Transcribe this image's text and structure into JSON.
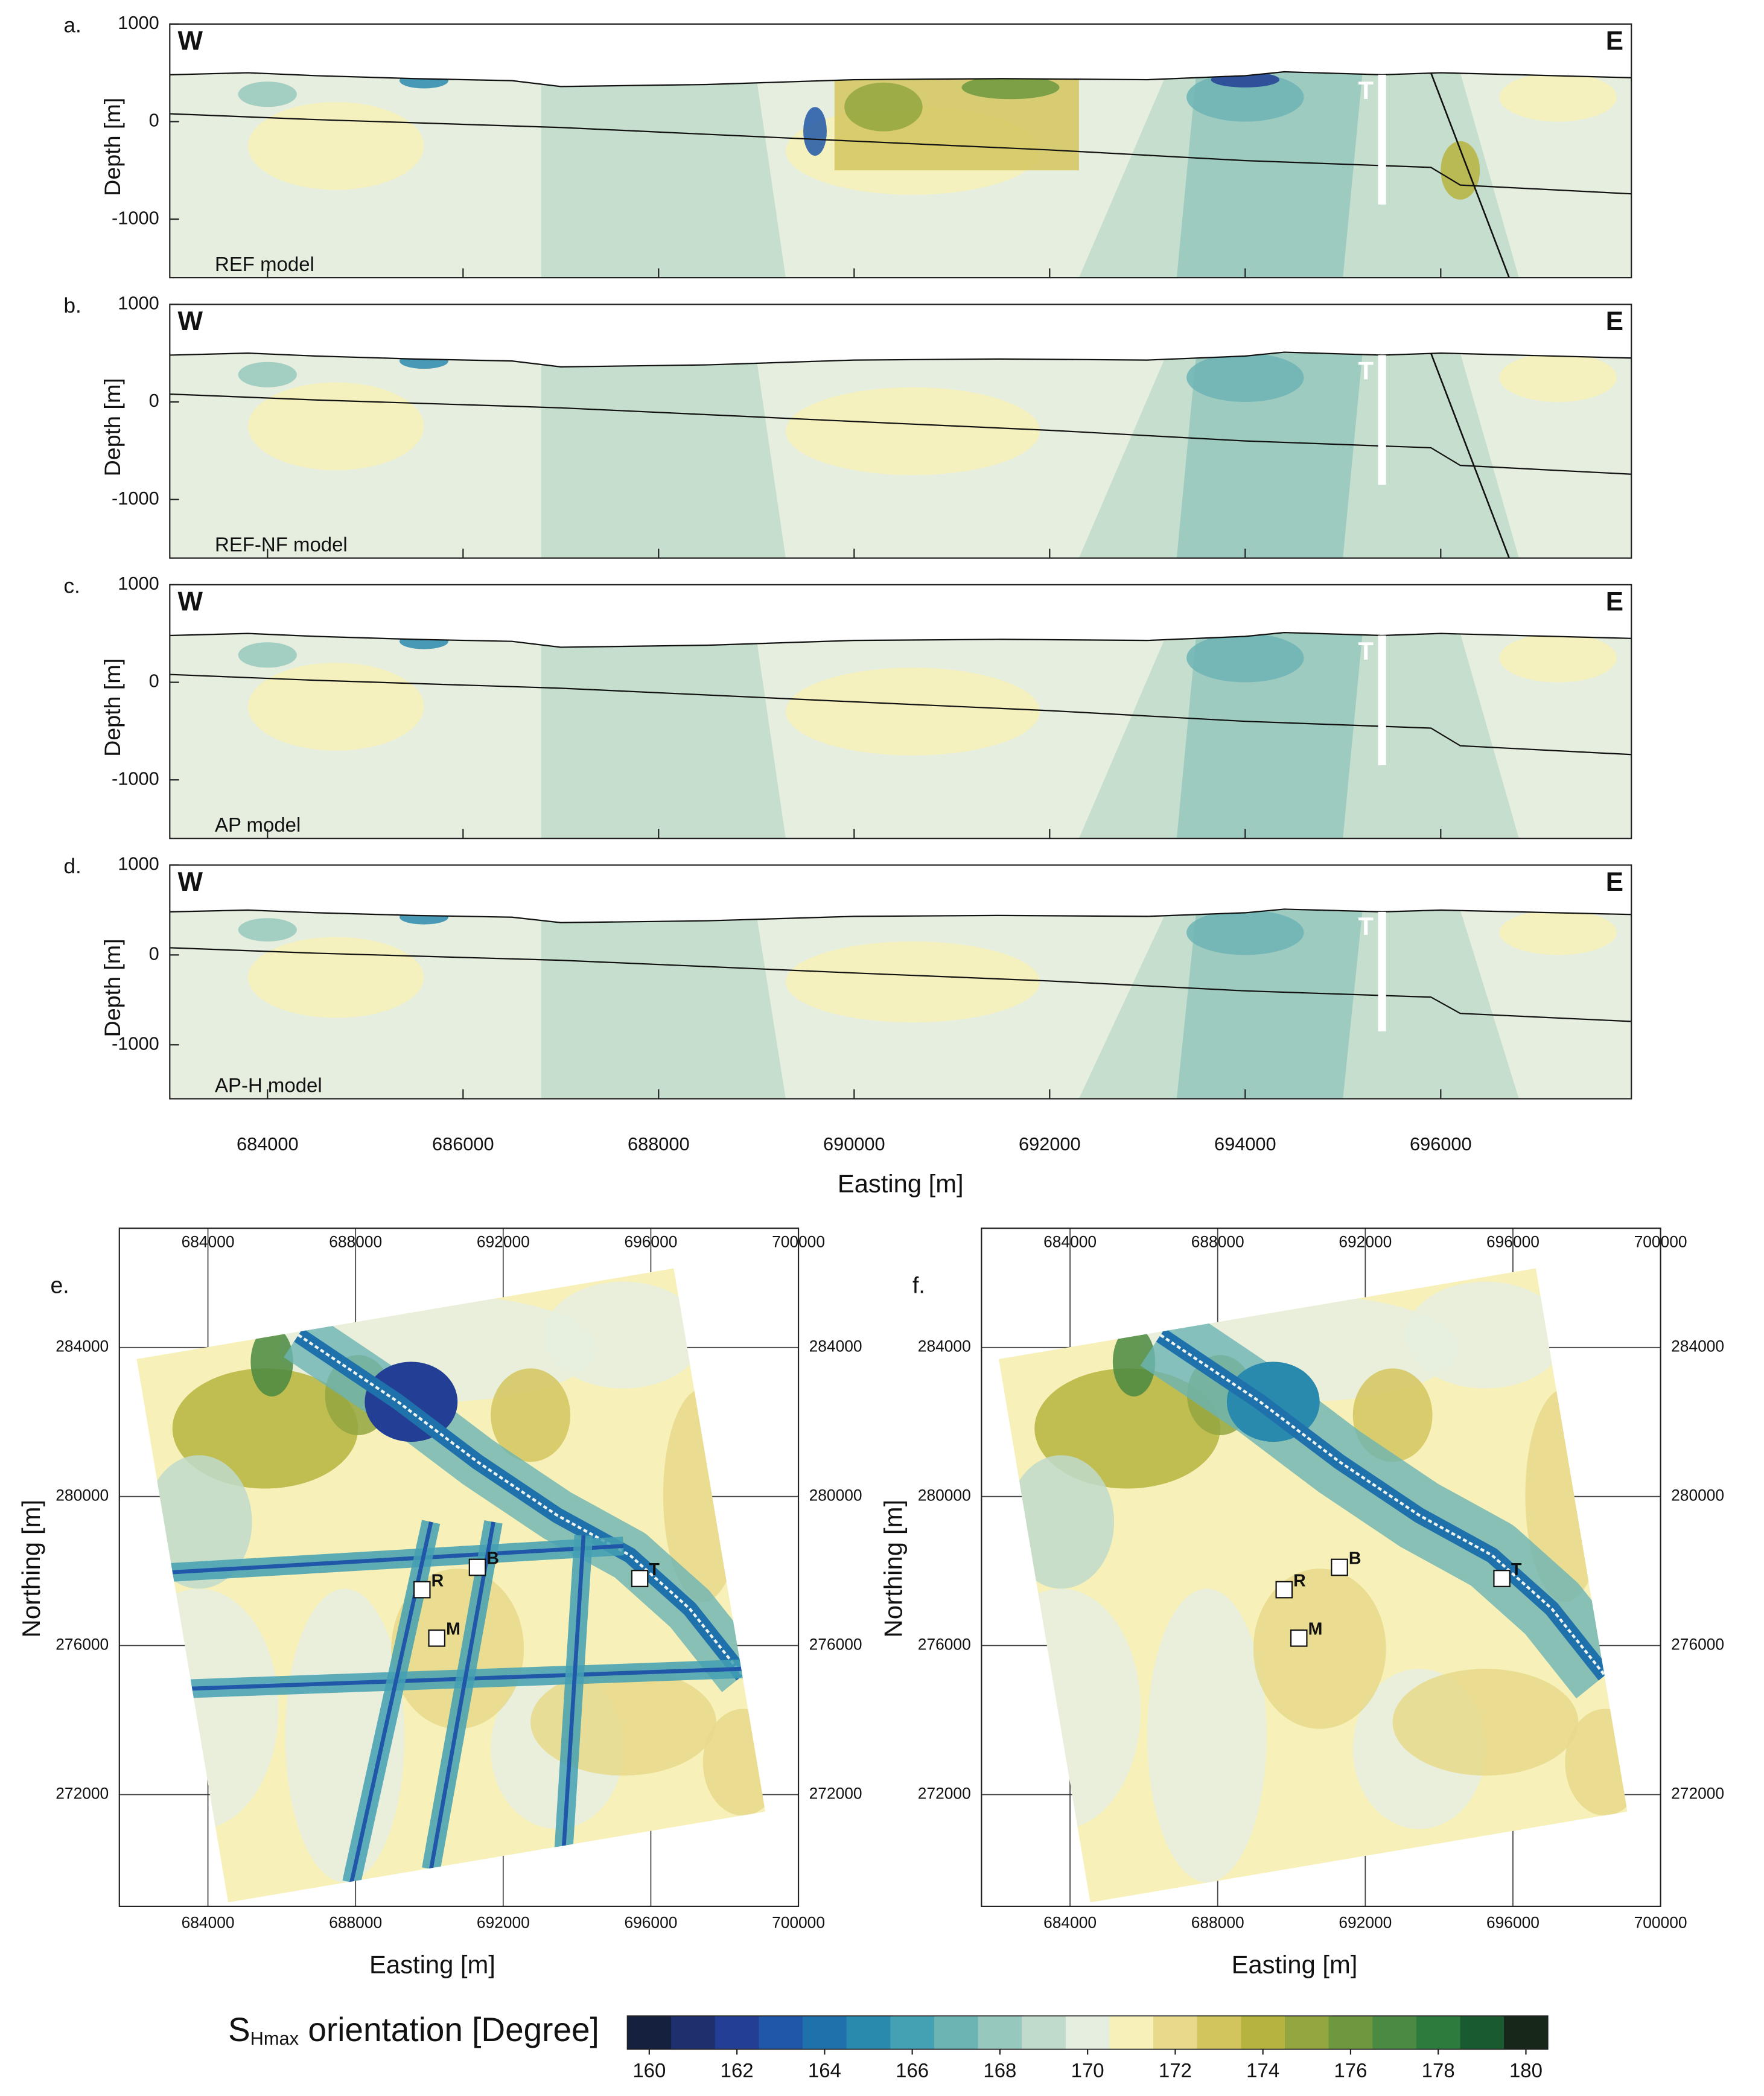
{
  "sections": {
    "ylabel": "Depth [m]",
    "xlabel": "Easting [m]",
    "xlim": [
      683000,
      697950
    ],
    "ylim": [
      -1600,
      1000
    ],
    "yticks": [
      -1000,
      0,
      1000
    ],
    "xticks": [
      684000,
      686000,
      688000,
      690000,
      692000,
      694000,
      696000
    ],
    "panels": [
      {
        "label": "a.",
        "name": "REF model",
        "west": "W",
        "east": "E",
        "well": "T",
        "fault": true
      },
      {
        "label": "b.",
        "name": "REF-NF model",
        "west": "W",
        "east": "E",
        "well": "T",
        "fault": true
      },
      {
        "label": "c.",
        "name": "AP model",
        "west": "W",
        "east": "E",
        "well": "T",
        "fault": false
      },
      {
        "label": "d.",
        "name": "AP-H model",
        "west": "W",
        "east": "E",
        "well": "T",
        "fault": false
      }
    ]
  },
  "maps": {
    "xlabel": "Easting [m]",
    "ylabel": "Northing [m]",
    "xlim": [
      681600,
      700000
    ],
    "ylim": [
      269000,
      287200
    ],
    "xticks": [
      684000,
      688000,
      692000,
      696000,
      700000
    ],
    "yticks": [
      272000,
      276000,
      280000,
      284000
    ],
    "grid": true,
    "panels": [
      {
        "label": "e.",
        "faults": true
      },
      {
        "label": "f.",
        "faults": false
      }
    ],
    "sites": [
      {
        "name": "R",
        "x": 689800,
        "y": 277500
      },
      {
        "name": "B",
        "x": 691300,
        "y": 278100
      },
      {
        "name": "M",
        "x": 690200,
        "y": 276200
      },
      {
        "name": "T",
        "x": 695700,
        "y": 277800
      }
    ]
  },
  "colorbar": {
    "symbol": "S",
    "subscript": "Hmax",
    "label": "orientation [Degree]",
    "lim": [
      159.5,
      180.5
    ],
    "ticks": [
      160,
      162,
      164,
      166,
      168,
      170,
      172,
      174,
      176,
      178,
      180
    ],
    "colors": [
      "#14203e",
      "#1e2f6e",
      "#233f95",
      "#2057a8",
      "#1f71ab",
      "#2a8aae",
      "#44a0b3",
      "#6cb4b4",
      "#96c8bd",
      "#c0dacb",
      "#e6eedf",
      "#f7f1b9",
      "#e8d98b",
      "#d3c55e",
      "#b6b43e",
      "#93a63f",
      "#6d9840",
      "#4a8a42",
      "#2d7b3d",
      "#1a5a30",
      "#17281b"
    ]
  }
}
